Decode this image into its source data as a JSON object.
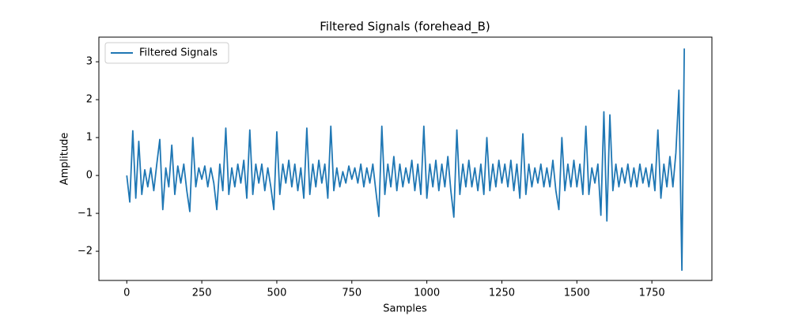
{
  "chart_data": {
    "type": "line",
    "title": "Filtered Signals (forehead_B)",
    "xlabel": "Samples",
    "ylabel": "Amplitude",
    "legend": "upper left",
    "grid": false,
    "xlim": [
      -93,
      1950
    ],
    "ylim": [
      -2.77,
      3.65
    ],
    "xticks": [
      0,
      250,
      500,
      750,
      1000,
      1250,
      1500,
      1750
    ],
    "yticks": [
      {
        "value": -2,
        "label": "−2"
      },
      {
        "value": -1,
        "label": "−1"
      },
      0,
      1,
      2,
      3
    ],
    "x": [
      0,
      10,
      20,
      30,
      40,
      50,
      60,
      70,
      80,
      90,
      100,
      110,
      120,
      130,
      140,
      150,
      160,
      170,
      180,
      190,
      200,
      210,
      220,
      230,
      240,
      250,
      260,
      270,
      280,
      290,
      300,
      310,
      320,
      330,
      340,
      350,
      360,
      370,
      380,
      390,
      400,
      410,
      420,
      430,
      440,
      450,
      460,
      470,
      480,
      490,
      500,
      510,
      520,
      530,
      540,
      550,
      560,
      570,
      580,
      590,
      600,
      610,
      620,
      630,
      640,
      650,
      660,
      670,
      680,
      690,
      700,
      710,
      720,
      730,
      740,
      750,
      760,
      770,
      780,
      790,
      800,
      810,
      820,
      830,
      840,
      850,
      860,
      870,
      880,
      890,
      900,
      910,
      920,
      930,
      940,
      950,
      960,
      970,
      980,
      990,
      1000,
      1010,
      1020,
      1030,
      1040,
      1050,
      1060,
      1070,
      1080,
      1090,
      1100,
      1110,
      1120,
      1130,
      1140,
      1150,
      1160,
      1170,
      1180,
      1190,
      1200,
      1210,
      1220,
      1230,
      1240,
      1250,
      1260,
      1270,
      1280,
      1290,
      1300,
      1310,
      1320,
      1330,
      1340,
      1350,
      1360,
      1370,
      1380,
      1390,
      1400,
      1410,
      1420,
      1430,
      1440,
      1450,
      1460,
      1470,
      1480,
      1490,
      1500,
      1510,
      1520,
      1530,
      1540,
      1550,
      1560,
      1570,
      1580,
      1590,
      1600,
      1610,
      1620,
      1630,
      1640,
      1650,
      1660,
      1670,
      1680,
      1690,
      1700,
      1710,
      1720,
      1730,
      1740,
      1750,
      1760,
      1770,
      1780,
      1790,
      1800,
      1810,
      1820,
      1830,
      1840,
      1850,
      1858
    ],
    "series": [
      {
        "name": "Filtered Signals",
        "color": "#1f77b4",
        "values": [
          0.0,
          -0.7,
          1.18,
          -0.6,
          0.9,
          -0.5,
          0.15,
          -0.3,
          0.2,
          -0.4,
          0.3,
          0.95,
          -0.9,
          0.2,
          -0.3,
          0.8,
          -0.5,
          0.25,
          -0.2,
          0.3,
          -0.4,
          -0.95,
          1.0,
          -0.3,
          0.2,
          -0.1,
          0.25,
          -0.3,
          0.2,
          -0.2,
          -0.9,
          0.3,
          -0.4,
          1.25,
          -0.5,
          0.2,
          -0.3,
          0.3,
          -0.2,
          0.4,
          -0.6,
          1.2,
          -0.5,
          0.3,
          -0.2,
          0.3,
          -0.4,
          0.2,
          -0.3,
          -0.9,
          1.15,
          -0.5,
          0.3,
          -0.2,
          0.4,
          -0.3,
          0.3,
          -0.4,
          0.2,
          -0.6,
          1.25,
          -0.5,
          0.3,
          -0.3,
          0.4,
          -0.2,
          0.3,
          -0.6,
          1.3,
          -0.4,
          0.2,
          -0.3,
          0.1,
          -0.2,
          0.25,
          -0.1,
          0.2,
          -0.2,
          0.3,
          -0.3,
          0.2,
          -0.2,
          0.3,
          -0.4,
          -1.08,
          1.3,
          -0.5,
          0.3,
          -0.3,
          0.5,
          -0.4,
          0.3,
          -0.3,
          0.2,
          -0.2,
          0.4,
          -0.4,
          0.3,
          -0.5,
          1.3,
          -0.6,
          0.3,
          -0.3,
          0.4,
          -0.4,
          0.3,
          -0.3,
          0.5,
          -0.4,
          -1.1,
          1.2,
          -0.5,
          0.3,
          -0.3,
          0.4,
          -0.3,
          0.2,
          -0.4,
          0.3,
          -0.5,
          1.0,
          -0.4,
          0.3,
          -0.3,
          0.4,
          -0.2,
          0.3,
          -0.3,
          0.4,
          -0.4,
          0.3,
          -0.6,
          1.1,
          -0.5,
          0.3,
          -0.3,
          0.2,
          -0.2,
          0.3,
          -0.3,
          0.2,
          -0.3,
          0.4,
          -0.4,
          -0.9,
          1.0,
          -0.4,
          0.3,
          -0.3,
          0.4,
          -0.3,
          0.3,
          -0.5,
          1.3,
          -0.5,
          0.2,
          -0.2,
          0.3,
          -1.05,
          1.68,
          -1.2,
          1.6,
          -0.4,
          0.3,
          -0.3,
          0.2,
          -0.2,
          0.3,
          -0.3,
          0.2,
          -0.3,
          0.3,
          -0.2,
          0.2,
          -0.3,
          0.3,
          -0.4,
          1.2,
          -0.6,
          0.3,
          -0.3,
          0.5,
          -0.3,
          0.6,
          2.25,
          -2.5,
          3.35
        ]
      }
    ]
  }
}
